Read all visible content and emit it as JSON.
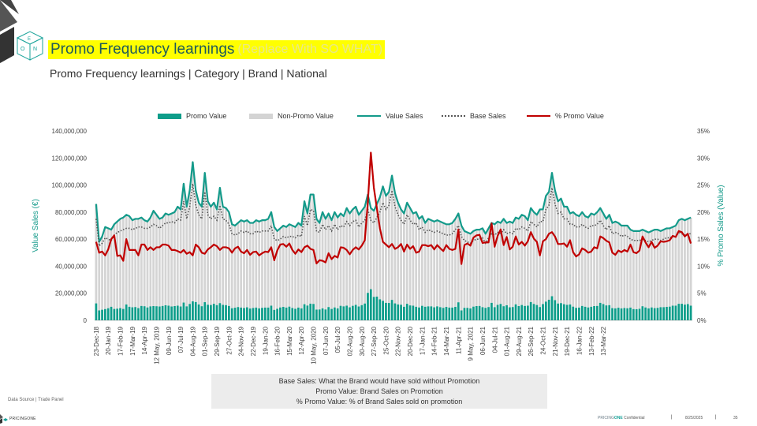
{
  "header": {
    "title": "Promo Frequency learnings",
    "title_note": "(Replace With SO WHAT)",
    "subtitle": "Promo Frequency learnings | Category | Brand | National"
  },
  "logo": {
    "text": "ONE",
    "icon": "cube-logo-icon"
  },
  "colors": {
    "promo": "#0e9d8a",
    "non_promo": "#d4d4d4",
    "value_sales": "#139a8a",
    "base_sales": "#555555",
    "promo_pct": "#c00000",
    "title_bg": "#ffff00"
  },
  "legend": {
    "promo_value": "Promo Value",
    "non_promo_value": "Non-Promo Value",
    "value_sales": "Value Sales",
    "base_sales": "Base Sales",
    "promo_pct": "% Promo Value"
  },
  "notes": {
    "line1": "Base Sales: What the Brand would have sold without Promotion",
    "line2": "Promo Value: Brand Sales on Promotion",
    "line3": "% Promo Value: % of Brand Sales sold on promotion"
  },
  "footer": {
    "source": "Data Source | Trade Panel",
    "logo_text": "PRICINGONE",
    "confidential_pre": "PRICING",
    "confidential_brand": "ONE",
    "confidential_post": " Confidential",
    "separator": "|",
    "date": "8/25/2025",
    "page": "35"
  },
  "chart_data": {
    "type": "bar",
    "ylabel": "Value Sales (€)",
    "y2label": "% Promo Sales (Value)",
    "ylim": [
      0,
      140000000
    ],
    "y2lim": [
      0,
      0.35
    ],
    "yticks": [
      0,
      20000000,
      40000000,
      60000000,
      80000000,
      100000000,
      120000000,
      140000000
    ],
    "yticklabels": [
      "0",
      "20,000,000",
      "40,000,000",
      "60,000,000",
      "80,000,000",
      "100,000,000",
      "120,000,000",
      "140,000,000"
    ],
    "y2ticklabels": [
      "0%",
      "5%",
      "10%",
      "15%",
      "20%",
      "25%",
      "30%",
      "35%"
    ],
    "legend_position": "top",
    "xticklabels": [
      "23-Dec-18",
      "20-Jan-19",
      "17-Feb-19",
      "17-Mar-19",
      "14-Apr-19",
      "12 May, 2019",
      "09-Jun-19",
      "07-Jul-19",
      "04-Aug-19",
      "01-Sep-19",
      "29-Sep-19",
      "27-Oct-19",
      "24-Nov-19",
      "22-Dec-19",
      "19-Jan-20",
      "16-Feb-20",
      "15-Mar-20",
      "12-Apr-20",
      "10 May, 2020",
      "07-Jun-20",
      "05-Jul-20",
      "02-Aug-20",
      "30-Aug-20",
      "27-Sep-20",
      "25-Oct-20",
      "22-Nov-20",
      "20-Dec-20",
      "17-Jan-21",
      "14-Feb-21",
      "14-Mar-21",
      "11-Apr-21",
      "9 May, 2021",
      "06-Jun-21",
      "04-Jul-21",
      "01-Aug-21",
      "29-Aug-21",
      "26-Sep-21",
      "24-Oct-21",
      "21-Nov-21",
      "19-Dec-21",
      "16-Jan-22",
      "13-Feb-22",
      "13-Mar-22"
    ],
    "weeks_per_label": 4,
    "series": [
      {
        "name": "Value Sales",
        "axis": "left",
        "kind": "line",
        "values": [
          86000000,
          58000000,
          62000000,
          69000000,
          68000000,
          67000000,
          71000000,
          73000000,
          75000000,
          76000000,
          78000000,
          77000000,
          74000000,
          75000000,
          75000000,
          76000000,
          74000000,
          73000000,
          76000000,
          81000000,
          78000000,
          75000000,
          76000000,
          79000000,
          78000000,
          79000000,
          80000000,
          84000000,
          82000000,
          101000000,
          84000000,
          96000000,
          117000000,
          96000000,
          87000000,
          84000000,
          109000000,
          88000000,
          84000000,
          87000000,
          82000000,
          98000000,
          84000000,
          83000000,
          80000000,
          71000000,
          70000000,
          72000000,
          74000000,
          73000000,
          74000000,
          72000000,
          72000000,
          74000000,
          73000000,
          74000000,
          74000000,
          75000000,
          80000000,
          69000000,
          66000000,
          68000000,
          70000000,
          69000000,
          71000000,
          70000000,
          69000000,
          72000000,
          70000000,
          88000000,
          79000000,
          93000000,
          93000000,
          75000000,
          72000000,
          80000000,
          75000000,
          79000000,
          74000000,
          80000000,
          76000000,
          79000000,
          77000000,
          83000000,
          79000000,
          82000000,
          84000000,
          78000000,
          81000000,
          84000000,
          93000000,
          83000000,
          81000000,
          86000000,
          91000000,
          99000000,
          92000000,
          95000000,
          107000000,
          94000000,
          87000000,
          82000000,
          79000000,
          87000000,
          83000000,
          79000000,
          80000000,
          75000000,
          77000000,
          72000000,
          75000000,
          74000000,
          73000000,
          74000000,
          73000000,
          72000000,
          71000000,
          71000000,
          72000000,
          75000000,
          79000000,
          70000000,
          66000000,
          65000000,
          64000000,
          66000000,
          67000000,
          67000000,
          68000000,
          64000000,
          68000000,
          72000000,
          71000000,
          73000000,
          72000000,
          75000000,
          72000000,
          73000000,
          72000000,
          76000000,
          75000000,
          78000000,
          77000000,
          74000000,
          83000000,
          80000000,
          78000000,
          82000000,
          82000000,
          92000000,
          95000000,
          109000000,
          96000000,
          88000000,
          90000000,
          84000000,
          84000000,
          79000000,
          80000000,
          78000000,
          77000000,
          80000000,
          77000000,
          76000000,
          79000000,
          78000000,
          80000000,
          83000000,
          79000000,
          75000000,
          78000000,
          72000000,
          73000000,
          72000000,
          70000000,
          70000000,
          70000000,
          67000000,
          66000000,
          66000000,
          66000000,
          67000000,
          66000000,
          65000000,
          66000000,
          67000000,
          67000000,
          66000000,
          67000000,
          68000000,
          68000000,
          69000000,
          70000000,
          74000000,
          75000000,
          74000000,
          75000000,
          76000000
        ]
      },
      {
        "name": "Base Sales",
        "axis": "left",
        "kind": "dotted",
        "values": [
          75000000,
          55000000,
          57000000,
          61000000,
          60000000,
          59000000,
          63000000,
          65000000,
          66000000,
          67000000,
          68000000,
          68000000,
          67000000,
          68000000,
          69000000,
          69000000,
          68000000,
          68000000,
          69000000,
          71000000,
          70000000,
          68000000,
          70000000,
          72000000,
          72000000,
          73000000,
          72000000,
          75000000,
          74000000,
          88000000,
          75000000,
          84000000,
          101000000,
          85000000,
          78000000,
          75000000,
          95000000,
          78000000,
          75000000,
          77000000,
          74000000,
          85000000,
          75000000,
          74000000,
          71000000,
          64000000,
          63000000,
          64000000,
          66000000,
          65000000,
          66000000,
          64000000,
          64000000,
          66000000,
          65000000,
          66000000,
          66000000,
          66000000,
          70000000,
          60000000,
          59000000,
          60000000,
          62000000,
          61000000,
          62000000,
          62000000,
          61000000,
          63000000,
          62000000,
          77000000,
          70000000,
          82000000,
          81000000,
          66000000,
          65000000,
          71000000,
          67000000,
          70000000,
          66000000,
          71000000,
          67000000,
          70000000,
          69000000,
          73000000,
          70000000,
          73000000,
          74000000,
          69000000,
          72000000,
          74000000,
          82000000,
          74000000,
          72000000,
          76000000,
          80000000,
          87000000,
          82000000,
          85000000,
          96000000,
          84000000,
          78000000,
          74000000,
          71000000,
          78000000,
          74000000,
          71000000,
          72000000,
          67000000,
          69000000,
          65000000,
          67000000,
          66000000,
          65000000,
          66000000,
          65000000,
          64000000,
          63000000,
          63000000,
          64000000,
          67000000,
          70000000,
          62000000,
          59000000,
          58000000,
          57000000,
          59000000,
          60000000,
          60000000,
          61000000,
          57000000,
          61000000,
          64000000,
          63000000,
          65000000,
          64000000,
          67000000,
          64000000,
          65000000,
          64000000,
          68000000,
          67000000,
          69000000,
          68000000,
          66000000,
          73000000,
          71000000,
          69000000,
          73000000,
          73000000,
          82000000,
          85000000,
          98000000,
          86000000,
          79000000,
          80000000,
          75000000,
          75000000,
          71000000,
          71000000,
          69000000,
          69000000,
          71000000,
          69000000,
          68000000,
          70000000,
          70000000,
          71000000,
          74000000,
          70000000,
          67000000,
          70000000,
          64000000,
          65000000,
          64000000,
          62000000,
          63000000,
          62000000,
          60000000,
          59000000,
          59000000,
          59000000,
          60000000,
          59000000,
          58000000,
          59000000,
          60000000,
          60000000,
          59000000,
          60000000,
          61000000,
          61000000,
          62000000,
          62000000,
          65000000,
          64000000,
          63000000,
          64000000,
          64000000
        ]
      },
      {
        "name": "Promo Value",
        "axis": "left",
        "kind": "bar",
        "values": [
          12500000,
          7300000,
          7800000,
          8300000,
          8900000,
          10000000,
          8400000,
          8600000,
          9000000,
          8400000,
          11700000,
          10000000,
          9600000,
          9800000,
          9000000,
          10600000,
          10400000,
          9500000,
          10300000,
          10500000,
          10400000,
          10200000,
          10600000,
          11100000,
          10800000,
          10200000,
          10500000,
          10800000,
          10200000,
          13100000,
          10300000,
          12100000,
          14000000,
          13500000,
          11700000,
          10400000,
          13400000,
          11500000,
          11300000,
          12200000,
          11200000,
          12700000,
          11400000,
          11200000,
          10600000,
          8900000,
          9300000,
          9800000,
          9400000,
          9100000,
          9600000,
          8700000,
          9100000,
          9400000,
          8800000,
          9200000,
          9400000,
          9400000,
          10800000,
          7700000,
          8500000,
          9500000,
          9900000,
          9400000,
          10100000,
          9100000,
          8500000,
          9400000,
          8800000,
          11900000,
          10900000,
          12300000,
          12100000,
          7900000,
          8000000,
          8800000,
          8000000,
          9800000,
          8400000,
          9500000,
          8800000,
          10700000,
          10300000,
          10800000,
          9600000,
          10700000,
          11400000,
          10200000,
          11200000,
          12400000,
          20300000,
          23000000,
          17300000,
          17500000,
          15500000,
          14400000,
          12900000,
          12800000,
          15100000,
          12500000,
          11700000,
          11500000,
          10000000,
          12200000,
          11000000,
          10800000,
          10000000,
          9500000,
          10700000,
          10000000,
          10300000,
          10300000,
          9600000,
          10300000,
          9700000,
          9200000,
          9900000,
          9400000,
          9400000,
          9900000,
          13300000,
          7300000,
          9200000,
          9200000,
          8800000,
          10100000,
          10500000,
          10600000,
          9700000,
          9200000,
          9800000,
          12900000,
          9700000,
          11400000,
          12100000,
          10400000,
          11100000,
          9600000,
          9800000,
          11800000,
          10500000,
          11300000,
          10600000,
          10800000,
          13500000,
          12100000,
          11300000,
          9800000,
          12000000,
          13800000,
          15200000,
          17800000,
          14900000,
          12400000,
          12700000,
          11900000,
          11400000,
          11700000,
          10100000,
          9200000,
          9400000,
          10600000,
          10000000,
          9500000,
          10000000,
          10500000,
          10600000,
          12900000,
          12000000,
          11000000,
          11200000,
          9000000,
          8800000,
          9300000,
          8800000,
          9100000,
          8900000,
          9400000,
          8300000,
          8200000,
          8500000,
          10400000,
          9500000,
          8800000,
          9500000,
          9000000,
          9200000,
          9700000,
          9700000,
          9900000,
          10100000,
          10800000,
          10800000,
          12200000,
          12200000,
          11600000,
          12000000,
          10800000
        ]
      },
      {
        "name": "% Promo Value",
        "axis": "right",
        "kind": "line",
        "values": [
          0.145,
          0.125,
          0.127,
          0.12,
          0.131,
          0.15,
          0.157,
          0.119,
          0.12,
          0.11,
          0.15,
          0.13,
          0.13,
          0.13,
          0.12,
          0.14,
          0.14,
          0.13,
          0.135,
          0.13,
          0.135,
          0.135,
          0.14,
          0.14,
          0.138,
          0.13,
          0.13,
          0.128,
          0.125,
          0.13,
          0.123,
          0.126,
          0.12,
          0.14,
          0.135,
          0.125,
          0.123,
          0.131,
          0.135,
          0.14,
          0.137,
          0.13,
          0.135,
          0.135,
          0.133,
          0.125,
          0.133,
          0.136,
          0.127,
          0.124,
          0.13,
          0.121,
          0.126,
          0.127,
          0.12,
          0.124,
          0.127,
          0.126,
          0.135,
          0.111,
          0.129,
          0.14,
          0.141,
          0.136,
          0.142,
          0.13,
          0.123,
          0.131,
          0.126,
          0.135,
          0.138,
          0.132,
          0.13,
          0.105,
          0.111,
          0.11,
          0.107,
          0.124,
          0.113,
          0.119,
          0.116,
          0.135,
          0.134,
          0.13,
          0.122,
          0.13,
          0.135,
          0.131,
          0.138,
          0.148,
          0.218,
          0.31,
          0.245,
          0.207,
          0.17,
          0.145,
          0.14,
          0.135,
          0.141,
          0.132,
          0.135,
          0.141,
          0.127,
          0.14,
          0.132,
          0.137,
          0.125,
          0.127,
          0.139,
          0.139,
          0.137,
          0.139,
          0.131,
          0.139,
          0.133,
          0.128,
          0.139,
          0.132,
          0.13,
          0.132,
          0.168,
          0.104,
          0.139,
          0.142,
          0.138,
          0.153,
          0.157,
          0.158,
          0.143,
          0.144,
          0.144,
          0.179,
          0.136,
          0.156,
          0.168,
          0.139,
          0.154,
          0.131,
          0.136,
          0.155,
          0.14,
          0.145,
          0.138,
          0.146,
          0.163,
          0.151,
          0.145,
          0.12,
          0.146,
          0.15,
          0.16,
          0.163,
          0.155,
          0.141,
          0.141,
          0.142,
          0.136,
          0.148,
          0.126,
          0.118,
          0.122,
          0.133,
          0.13,
          0.125,
          0.127,
          0.135,
          0.133,
          0.155,
          0.152,
          0.147,
          0.144,
          0.125,
          0.121,
          0.129,
          0.126,
          0.13,
          0.127,
          0.14,
          0.126,
          0.124,
          0.129,
          0.155,
          0.144,
          0.135,
          0.145,
          0.134,
          0.138,
          0.146,
          0.145,
          0.146,
          0.148,
          0.156,
          0.154,
          0.165,
          0.163,
          0.155,
          0.16,
          0.142
        ]
      }
    ]
  }
}
